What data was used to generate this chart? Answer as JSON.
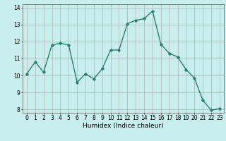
{
  "xlabel": "Humidex (Indice chaleur)",
  "ylabel": "",
  "x_values": [
    0,
    1,
    2,
    3,
    4,
    5,
    6,
    7,
    8,
    9,
    10,
    11,
    12,
    13,
    14,
    15,
    16,
    17,
    18,
    19,
    20,
    21,
    22,
    23
  ],
  "y_values": [
    10.1,
    10.8,
    10.2,
    11.8,
    11.9,
    11.8,
    9.6,
    10.1,
    9.8,
    10.4,
    11.5,
    11.5,
    13.05,
    13.25,
    13.35,
    13.8,
    11.85,
    11.3,
    11.1,
    10.35,
    9.85,
    8.55,
    7.95,
    8.05
  ],
  "ylim": [
    7.8,
    14.2
  ],
  "xlim": [
    -0.5,
    23.5
  ],
  "yticks": [
    8,
    9,
    10,
    11,
    12,
    13,
    14
  ],
  "xticks": [
    0,
    1,
    2,
    3,
    4,
    5,
    6,
    7,
    8,
    9,
    10,
    11,
    12,
    13,
    14,
    15,
    16,
    17,
    18,
    19,
    20,
    21,
    22,
    23
  ],
  "line_color": "#2e7d6e",
  "marker": "D",
  "marker_size": 1.8,
  "line_width": 1.0,
  "bg_color": "#c8eeee",
  "grid_color": "#b0b0b0",
  "axis_fontsize": 5.5,
  "xlabel_fontsize": 6.5
}
